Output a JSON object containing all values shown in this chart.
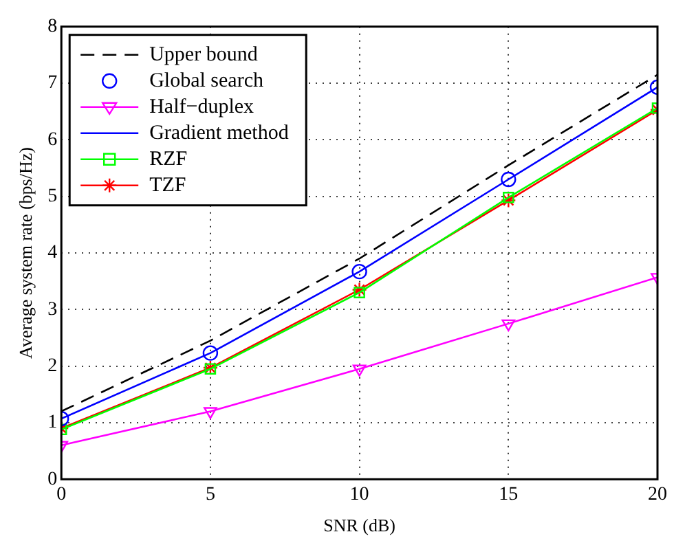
{
  "chart_data": {
    "type": "line",
    "xlabel": "SNR (dB)",
    "ylabel": "Average system rate (bps/Hz)",
    "x": [
      0,
      5,
      10,
      15,
      20
    ],
    "xlim": [
      0,
      20
    ],
    "xticks": [
      0,
      5,
      10,
      15,
      20
    ],
    "ylim": [
      0,
      8
    ],
    "yticks": [
      0,
      1,
      2,
      3,
      4,
      5,
      6,
      7,
      8
    ],
    "grid": true,
    "legend": "top left",
    "series": [
      {
        "name": "Upper bound",
        "color": "#000000",
        "values": [
          1.2,
          2.45,
          3.9,
          5.55,
          7.15
        ],
        "line_style": "dashed",
        "marker": "none"
      },
      {
        "name": "Global search",
        "type": "scatter",
        "color": "#0000ff",
        "values": [
          1.07,
          2.23,
          3.67,
          5.3,
          6.93
        ],
        "marker": "circle"
      },
      {
        "name": "Half−duplex",
        "color": "#ff00ff",
        "values": [
          0.6,
          1.2,
          1.95,
          2.75,
          3.57
        ],
        "line_style": "solid",
        "marker": "triangle"
      },
      {
        "name": "Gradient method",
        "color": "#0000ff",
        "values": [
          1.07,
          2.23,
          3.67,
          5.3,
          6.93
        ],
        "line_style": "solid",
        "marker": "none"
      },
      {
        "name": "RZF",
        "color": "#00ff00",
        "values": [
          0.88,
          1.95,
          3.3,
          4.98,
          6.56
        ],
        "line_style": "solid",
        "marker": "square"
      },
      {
        "name": "TZF",
        "color": "#ff0000",
        "values": [
          0.9,
          1.97,
          3.35,
          4.93,
          6.53
        ],
        "line_style": "solid",
        "marker": "cross"
      }
    ]
  }
}
